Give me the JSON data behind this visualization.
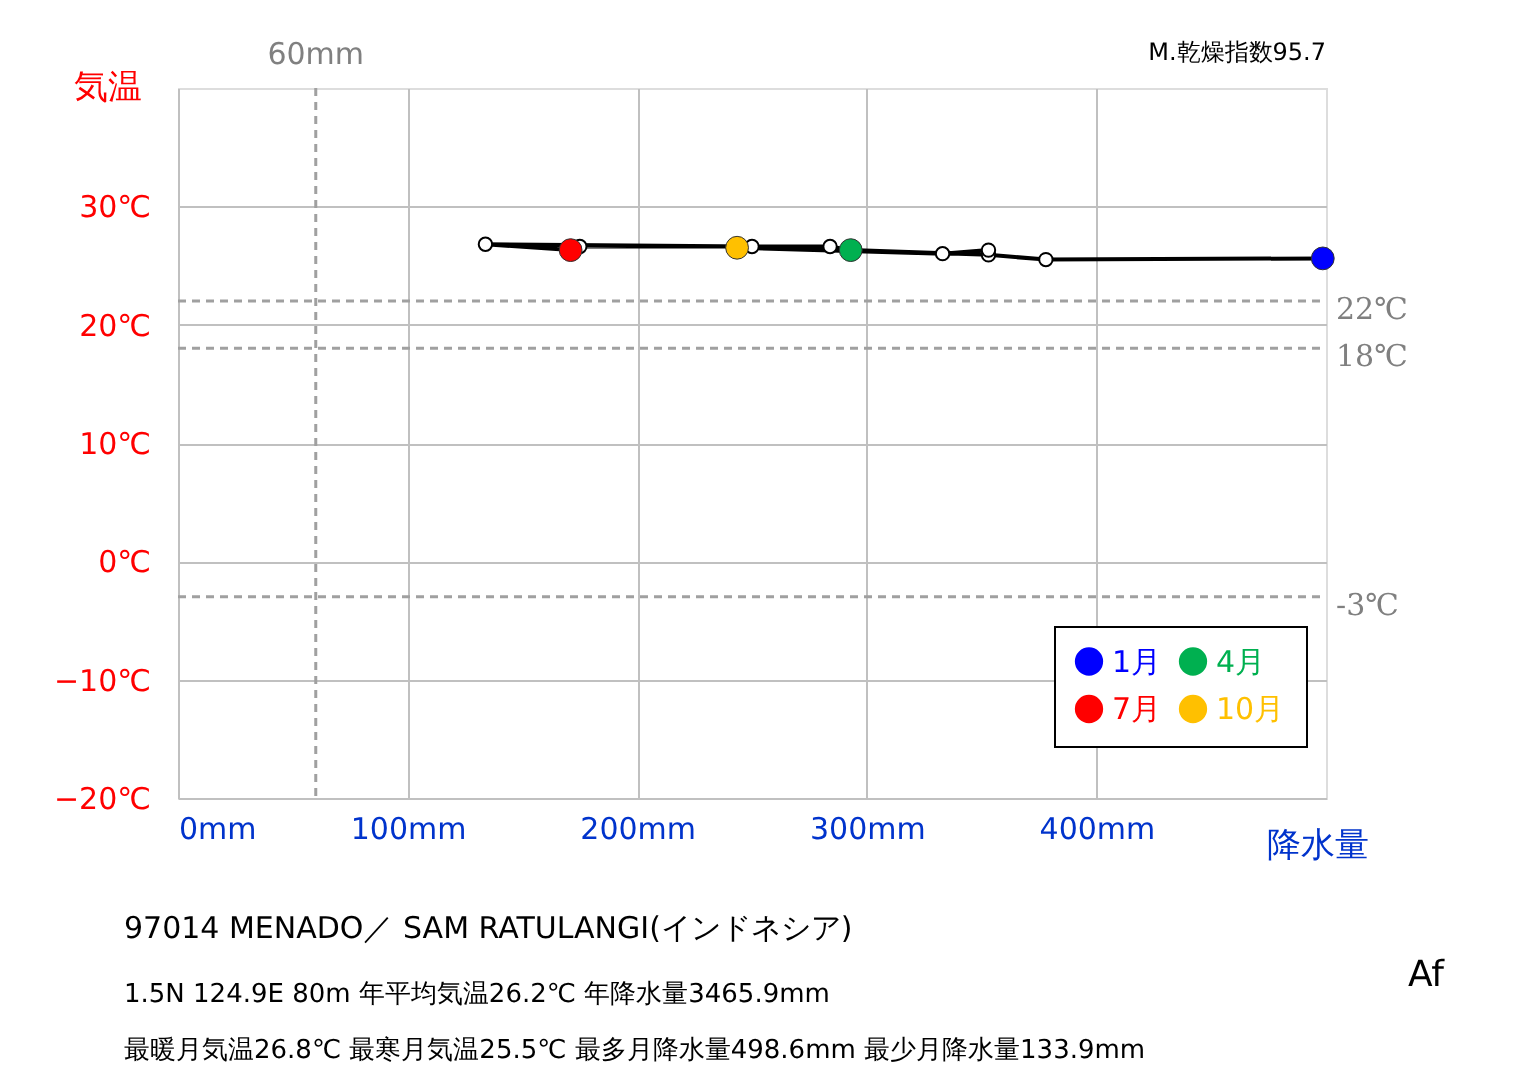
{
  "chart_data": {
    "type": "line",
    "xlabel": "降水量",
    "ylabel": "気温",
    "xlim": [
      0,
      500
    ],
    "xticks": [
      {
        "value": 0,
        "label": "0mm"
      },
      {
        "value": 100,
        "label": "100mm"
      },
      {
        "value": 200,
        "label": "200mm"
      },
      {
        "value": 300,
        "label": "300mm"
      },
      {
        "value": 400,
        "label": "400mm"
      }
    ],
    "ylim": [
      -20,
      40
    ],
    "yticks": [
      {
        "value": -20,
        "label": "−20℃"
      },
      {
        "value": -10,
        "label": "−10℃"
      },
      {
        "value": 0,
        "label": "0℃"
      },
      {
        "value": 10,
        "label": "10℃"
      },
      {
        "value": 20,
        "label": "20℃"
      },
      {
        "value": 30,
        "label": "30℃"
      }
    ],
    "grid": true,
    "legend": "bottom right",
    "series": [
      {
        "color": "#000000",
        "marker": "circle",
        "x": [
          498.6,
          378,
          353,
          293,
          284,
          175,
          171,
          133.9,
          250,
          243.5,
          333,
          353
        ],
        "values": [
          25.6,
          25.5,
          25.9,
          26.3,
          26.6,
          26.6,
          26.3,
          26.8,
          26.6,
          26.5,
          26.0,
          26.3
        ]
      },
      {
        "type": "scatter",
        "name": "1月",
        "color": "#0000ff",
        "x": [
          498.6
        ],
        "values": [
          25.6
        ]
      },
      {
        "type": "scatter",
        "name": "4月",
        "color": "#00b050",
        "x": [
          293
        ],
        "values": [
          26.3
        ]
      },
      {
        "type": "scatter",
        "name": "7月",
        "color": "#ff0000",
        "x": [
          171
        ],
        "values": [
          26.3
        ]
      },
      {
        "type": "scatter",
        "name": "10月",
        "color": "#ffc000",
        "x": [
          243.5
        ],
        "values": [
          26.5
        ]
      }
    ],
    "ref_lines": [
      {
        "axis": "y",
        "value": 22,
        "label": "22℃",
        "color": "#a0a0a0",
        "line_style": "dashed"
      },
      {
        "axis": "y",
        "value": 18,
        "label": "18℃",
        "color": "#a0a0a0",
        "line_style": "dashed"
      },
      {
        "axis": "y",
        "value": -3,
        "label": "-3℃",
        "color": "#a0a0a0",
        "line_style": "dashed"
      },
      {
        "axis": "x",
        "value": 60,
        "label": "60mm",
        "color": "#a0a0a0",
        "line_style": "dashed"
      }
    ],
    "annotations": [
      "M.乾燥指数95.7",
      "97014  MENADO／ SAM RATULANGI(インドネシア)",
      "1.5N  124.9E 80m  年平均気温26.2℃ 年降水量3465.9mm",
      "最暖月気温26.8℃ 最寒月気温25.5℃ 最多月降水量498.6mm 最少月降水量133.9mm",
      "Af"
    ]
  }
}
